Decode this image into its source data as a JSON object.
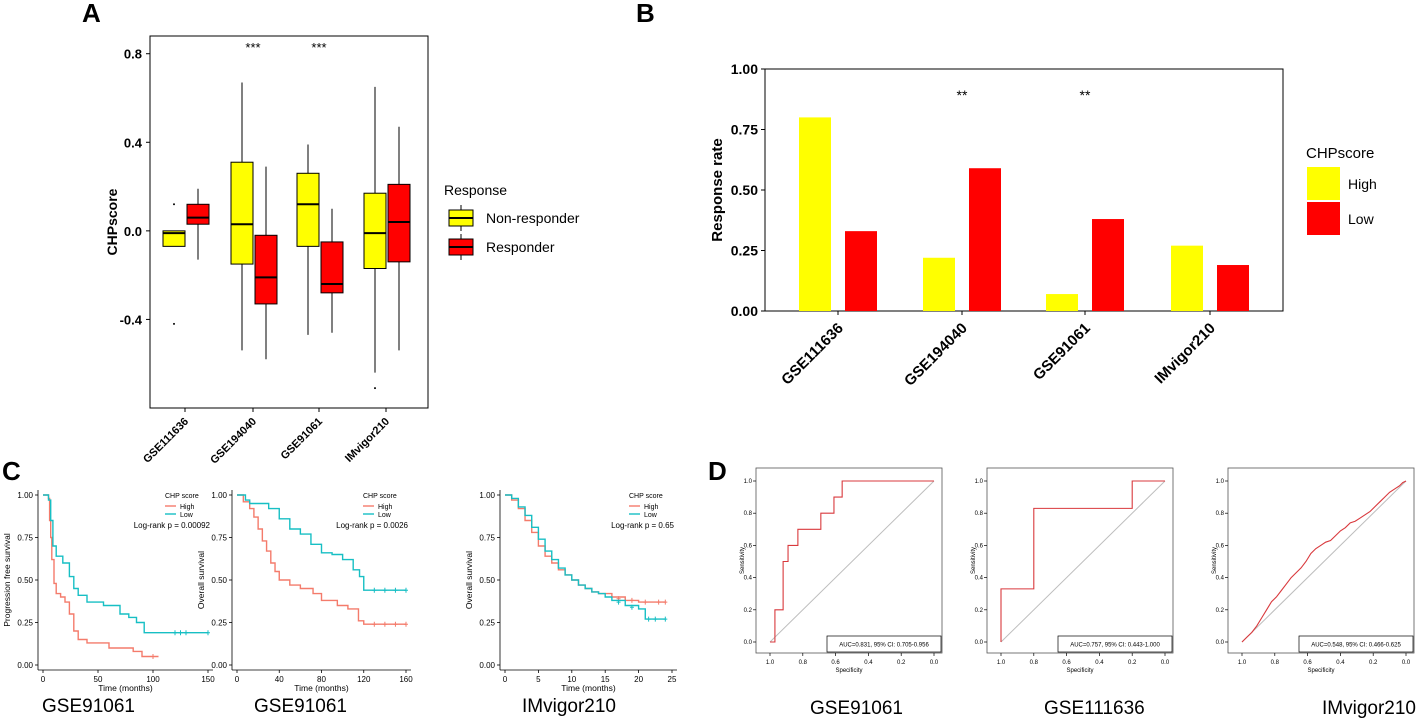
{
  "panel_labels": {
    "a": "A",
    "b": "B",
    "c": "C",
    "d": "D"
  },
  "colors": {
    "yellow": "#ffff00",
    "red": "#ff0000",
    "teal": "#17bfc4",
    "salmon": "#f47b6b",
    "gray": "#bdbdbd",
    "black": "#000000"
  },
  "chart_data": [
    {
      "id": "A",
      "type": "boxplot",
      "ylabel": "CHPscore",
      "ylim": [
        -0.8,
        0.88
      ],
      "yticks": [
        0.8,
        0.4,
        0.0,
        -0.4
      ],
      "ytick_labels": [
        "0.8",
        "0.4",
        "0.0",
        "-0.4"
      ],
      "categories": [
        "GSE111636",
        "GSE194040",
        "GSE91061",
        "IMvigor210"
      ],
      "legend_title": "Response",
      "series": [
        {
          "name": "Non-responder",
          "color": "#ffff00",
          "boxes": [
            {
              "wlo": -0.04,
              "q1": -0.07,
              "med": -0.01,
              "q3": 0.0,
              "whi": 0.0,
              "out": [
                0.12,
                -0.42
              ]
            },
            {
              "wlo": -0.54,
              "q1": -0.15,
              "med": 0.03,
              "q3": 0.31,
              "whi": 0.67,
              "out": []
            },
            {
              "wlo": -0.47,
              "q1": -0.07,
              "med": 0.12,
              "q3": 0.26,
              "whi": 0.39,
              "out": []
            },
            {
              "wlo": -0.64,
              "q1": -0.17,
              "med": -0.01,
              "q3": 0.17,
              "whi": 0.65,
              "out": [
                -0.71
              ]
            }
          ]
        },
        {
          "name": "Responder",
          "color": "#ff0000",
          "boxes": [
            {
              "wlo": -0.13,
              "q1": 0.03,
              "med": 0.06,
              "q3": 0.12,
              "whi": 0.19,
              "out": []
            },
            {
              "wlo": -0.58,
              "q1": -0.33,
              "med": -0.21,
              "q3": -0.02,
              "whi": 0.29,
              "out": []
            },
            {
              "wlo": -0.46,
              "q1": -0.28,
              "med": -0.24,
              "q3": -0.05,
              "whi": 0.1,
              "out": []
            },
            {
              "wlo": -0.54,
              "q1": -0.14,
              "med": 0.04,
              "q3": 0.21,
              "whi": 0.47,
              "out": []
            }
          ]
        }
      ],
      "significance": [
        {
          "category": "GSE194040",
          "label": "***"
        },
        {
          "category": "GSE91061",
          "label": "***"
        }
      ]
    },
    {
      "id": "B",
      "type": "bar",
      "ylabel": "Response rate",
      "ylim": [
        0,
        1
      ],
      "yticks": [
        1.0,
        0.75,
        0.5,
        0.25,
        0.0
      ],
      "ytick_labels": [
        "1.00",
        "0.75",
        "0.50",
        "0.25",
        "0.00"
      ],
      "categories": [
        "GSE111636",
        "GSE194040",
        "GSE91061",
        "IMvigor210"
      ],
      "legend_title": "CHPscore",
      "series": [
        {
          "name": "High",
          "color": "#ffff00",
          "values": [
            0.8,
            0.22,
            0.07,
            0.27
          ]
        },
        {
          "name": "Low",
          "color": "#ff0000",
          "values": [
            0.33,
            0.59,
            0.38,
            0.19
          ]
        }
      ],
      "significance": [
        {
          "category": "GSE194040",
          "label": "**"
        },
        {
          "category": "GSE91061",
          "label": "**"
        }
      ]
    },
    {
      "id": "C1",
      "type": "line",
      "subtype": "kaplan-meier",
      "caption": "GSE91061",
      "xlabel": "Time (months)",
      "ylabel": "Progression free survival",
      "xlim": [
        0,
        150
      ],
      "xticks": [
        0,
        50,
        100,
        150
      ],
      "xtick_labels": [
        "0",
        "50",
        "100",
        "150"
      ],
      "ylim": [
        0,
        1
      ],
      "yticks": [
        1.0,
        0.75,
        0.5,
        0.25,
        0.0
      ],
      "ytick_labels": [
        "1.00",
        "0.75",
        "0.50",
        "0.25",
        "0.00"
      ],
      "legend_title": "CHP score",
      "pvalue_text": "Log-rank  p = 0.00092",
      "series": [
        {
          "name": "High",
          "color": "#f47b6b",
          "points": [
            [
              0,
              1
            ],
            [
              5,
              0.98
            ],
            [
              6,
              0.85
            ],
            [
              7,
              0.75
            ],
            [
              8,
              0.62
            ],
            [
              10,
              0.48
            ],
            [
              12,
              0.42
            ],
            [
              16,
              0.4
            ],
            [
              20,
              0.37
            ],
            [
              24,
              0.3
            ],
            [
              28,
              0.2
            ],
            [
              32,
              0.15
            ],
            [
              40,
              0.13
            ],
            [
              60,
              0.1
            ],
            [
              70,
              0.1
            ],
            [
              82,
              0.08
            ],
            [
              90,
              0.05
            ],
            [
              105,
              0.05
            ]
          ],
          "censor": [
            [
              100,
              0.05
            ]
          ]
        },
        {
          "name": "Low",
          "color": "#17bfc4",
          "points": [
            [
              0,
              1
            ],
            [
              5,
              0.97
            ],
            [
              7,
              0.85
            ],
            [
              9,
              0.7
            ],
            [
              12,
              0.64
            ],
            [
              18,
              0.6
            ],
            [
              24,
              0.52
            ],
            [
              28,
              0.45
            ],
            [
              32,
              0.41
            ],
            [
              40,
              0.37
            ],
            [
              55,
              0.35
            ],
            [
              70,
              0.3
            ],
            [
              78,
              0.28
            ],
            [
              85,
              0.25
            ],
            [
              92,
              0.19
            ],
            [
              150,
              0.19
            ]
          ],
          "censor": [
            [
              120,
              0.19
            ],
            [
              125,
              0.19
            ],
            [
              130,
              0.19
            ],
            [
              150,
              0.19
            ]
          ]
        }
      ]
    },
    {
      "id": "C2",
      "type": "line",
      "subtype": "kaplan-meier",
      "caption": "GSE91061",
      "xlabel": "Time (months)",
      "ylabel": "Overall survival",
      "xlim": [
        0,
        160
      ],
      "xticks": [
        0,
        40,
        80,
        120,
        160
      ],
      "xtick_labels": [
        "0",
        "40",
        "80",
        "120",
        "160"
      ],
      "ylim": [
        0,
        1
      ],
      "yticks": [
        1.0,
        0.75,
        0.5,
        0.25,
        0.0
      ],
      "ytick_labels": [
        "1.00",
        "0.75",
        "0.50",
        "0.25",
        "0.00"
      ],
      "legend_title": "CHP score",
      "pvalue_text": "Log-rank  p = 0.0026",
      "series": [
        {
          "name": "High",
          "color": "#f47b6b",
          "points": [
            [
              0,
              1
            ],
            [
              6,
              0.96
            ],
            [
              12,
              0.92
            ],
            [
              16,
              0.87
            ],
            [
              20,
              0.8
            ],
            [
              24,
              0.73
            ],
            [
              28,
              0.67
            ],
            [
              32,
              0.6
            ],
            [
              36,
              0.55
            ],
            [
              40,
              0.5
            ],
            [
              50,
              0.47
            ],
            [
              60,
              0.45
            ],
            [
              72,
              0.42
            ],
            [
              80,
              0.38
            ],
            [
              95,
              0.35
            ],
            [
              105,
              0.33
            ],
            [
              115,
              0.26
            ],
            [
              120,
              0.24
            ],
            [
              160,
              0.24
            ]
          ],
          "censor": [
            [
              130,
              0.24
            ],
            [
              140,
              0.24
            ],
            [
              150,
              0.24
            ],
            [
              160,
              0.24
            ]
          ]
        },
        {
          "name": "Low",
          "color": "#17bfc4",
          "points": [
            [
              0,
              1
            ],
            [
              8,
              0.97
            ],
            [
              12,
              0.95
            ],
            [
              30,
              0.92
            ],
            [
              40,
              0.86
            ],
            [
              50,
              0.8
            ],
            [
              60,
              0.77
            ],
            [
              70,
              0.71
            ],
            [
              80,
              0.66
            ],
            [
              90,
              0.65
            ],
            [
              100,
              0.62
            ],
            [
              110,
              0.56
            ],
            [
              116,
              0.52
            ],
            [
              120,
              0.44
            ],
            [
              160,
              0.44
            ]
          ],
          "censor": [
            [
              130,
              0.44
            ],
            [
              140,
              0.44
            ],
            [
              150,
              0.44
            ],
            [
              160,
              0.44
            ]
          ]
        }
      ]
    },
    {
      "id": "C3",
      "type": "line",
      "subtype": "kaplan-meier",
      "caption": "IMvigor210",
      "xlabel": "Time (months)",
      "ylabel": "Overall survival",
      "xlim": [
        0,
        25
      ],
      "xticks": [
        0,
        5,
        10,
        15,
        20,
        25
      ],
      "xtick_labels": [
        "0",
        "5",
        "10",
        "15",
        "20",
        "25"
      ],
      "ylim": [
        0,
        1
      ],
      "yticks": [
        1.0,
        0.75,
        0.5,
        0.25,
        0.0
      ],
      "ytick_labels": [
        "1.00",
        "0.75",
        "0.50",
        "0.25",
        "0.00"
      ],
      "legend_title": "CHP score",
      "pvalue_text": "Log-rank  p = 0.65",
      "series": [
        {
          "name": "High",
          "color": "#f47b6b",
          "points": [
            [
              0,
              1
            ],
            [
              1,
              0.97
            ],
            [
              2,
              0.92
            ],
            [
              3,
              0.85
            ],
            [
              4,
              0.78
            ],
            [
              5,
              0.7
            ],
            [
              6,
              0.64
            ],
            [
              7,
              0.6
            ],
            [
              8,
              0.56
            ],
            [
              9,
              0.53
            ],
            [
              10,
              0.5
            ],
            [
              11,
              0.47
            ],
            [
              12,
              0.45
            ],
            [
              13,
              0.43
            ],
            [
              14,
              0.42
            ],
            [
              15,
              0.42
            ],
            [
              16,
              0.4
            ],
            [
              18,
              0.38
            ],
            [
              20,
              0.37
            ],
            [
              24,
              0.37
            ]
          ],
          "censor": [
            [
              17,
              0.39
            ],
            [
              19,
              0.38
            ],
            [
              21,
              0.37
            ],
            [
              23,
              0.37
            ],
            [
              24,
              0.37
            ]
          ]
        },
        {
          "name": "Low",
          "color": "#17bfc4",
          "points": [
            [
              0,
              1
            ],
            [
              1,
              0.98
            ],
            [
              2,
              0.93
            ],
            [
              3,
              0.88
            ],
            [
              4,
              0.81
            ],
            [
              5,
              0.74
            ],
            [
              6,
              0.67
            ],
            [
              7,
              0.62
            ],
            [
              8,
              0.57
            ],
            [
              9,
              0.53
            ],
            [
              10,
              0.5
            ],
            [
              11,
              0.47
            ],
            [
              12,
              0.45
            ],
            [
              13,
              0.43
            ],
            [
              14,
              0.42
            ],
            [
              15,
              0.4
            ],
            [
              16,
              0.38
            ],
            [
              18,
              0.35
            ],
            [
              20,
              0.33
            ],
            [
              21,
              0.27
            ],
            [
              24,
              0.27
            ]
          ],
          "censor": [
            [
              17,
              0.37
            ],
            [
              19,
              0.34
            ],
            [
              21.5,
              0.27
            ],
            [
              22.5,
              0.27
            ],
            [
              24,
              0.27
            ]
          ]
        }
      ]
    },
    {
      "id": "D1",
      "type": "line",
      "subtype": "roc",
      "caption": "GSE91061",
      "xlabel": "Specificity",
      "ylabel": "Sensitivity",
      "xlim": [
        1,
        0
      ],
      "ticks": [
        "1.0",
        "0.8",
        "0.6",
        "0.4",
        "0.2",
        "0.0"
      ],
      "auc_text": "AUC=0.831, 95% CI: 0.705-0.956",
      "points": [
        [
          1,
          0
        ],
        [
          0.97,
          0
        ],
        [
          0.97,
          0.2
        ],
        [
          0.92,
          0.2
        ],
        [
          0.92,
          0.5
        ],
        [
          0.89,
          0.5
        ],
        [
          0.89,
          0.6
        ],
        [
          0.83,
          0.6
        ],
        [
          0.83,
          0.7
        ],
        [
          0.69,
          0.7
        ],
        [
          0.69,
          0.8
        ],
        [
          0.61,
          0.8
        ],
        [
          0.61,
          0.9
        ],
        [
          0.56,
          0.9
        ],
        [
          0.56,
          1
        ],
        [
          0,
          1
        ]
      ]
    },
    {
      "id": "D2",
      "type": "line",
      "subtype": "roc",
      "caption": "GSE111636",
      "xlabel": "Specificity",
      "ylabel": "Sensitivity",
      "xlim": [
        1,
        0
      ],
      "ticks": [
        "1.0",
        "0.8",
        "0.6",
        "0.4",
        "0.2",
        "0.0"
      ],
      "auc_text": "AUC=0.757, 95% CI: 0.443-1.000",
      "points": [
        [
          1,
          0
        ],
        [
          1,
          0.33
        ],
        [
          0.8,
          0.33
        ],
        [
          0.8,
          0.83
        ],
        [
          0.2,
          0.83
        ],
        [
          0.2,
          1
        ],
        [
          0,
          1
        ]
      ]
    },
    {
      "id": "D3",
      "type": "line",
      "subtype": "roc",
      "caption": "IMvigor210",
      "xlabel": "Specificity",
      "ylabel": "Sensitivity",
      "xlim": [
        1,
        0
      ],
      "ticks": [
        "1.0",
        "0.8",
        "0.6",
        "0.4",
        "0.2",
        "0.0"
      ],
      "auc_text": "AUC=0.548, 95% CI: 0.466-0.625",
      "points": [
        [
          1,
          0
        ],
        [
          0.97,
          0.03
        ],
        [
          0.94,
          0.06
        ],
        [
          0.91,
          0.1
        ],
        [
          0.88,
          0.15
        ],
        [
          0.85,
          0.2
        ],
        [
          0.82,
          0.25
        ],
        [
          0.79,
          0.28
        ],
        [
          0.76,
          0.32
        ],
        [
          0.73,
          0.36
        ],
        [
          0.7,
          0.4
        ],
        [
          0.67,
          0.43
        ],
        [
          0.64,
          0.46
        ],
        [
          0.61,
          0.5
        ],
        [
          0.58,
          0.55
        ],
        [
          0.55,
          0.58
        ],
        [
          0.52,
          0.6
        ],
        [
          0.49,
          0.62
        ],
        [
          0.46,
          0.63
        ],
        [
          0.43,
          0.66
        ],
        [
          0.4,
          0.69
        ],
        [
          0.37,
          0.71
        ],
        [
          0.34,
          0.74
        ],
        [
          0.31,
          0.75
        ],
        [
          0.28,
          0.77
        ],
        [
          0.25,
          0.79
        ],
        [
          0.22,
          0.81
        ],
        [
          0.19,
          0.84
        ],
        [
          0.16,
          0.87
        ],
        [
          0.13,
          0.9
        ],
        [
          0.1,
          0.93
        ],
        [
          0.07,
          0.95
        ],
        [
          0.04,
          0.97
        ],
        [
          0.02,
          0.99
        ],
        [
          0,
          1
        ]
      ]
    }
  ]
}
